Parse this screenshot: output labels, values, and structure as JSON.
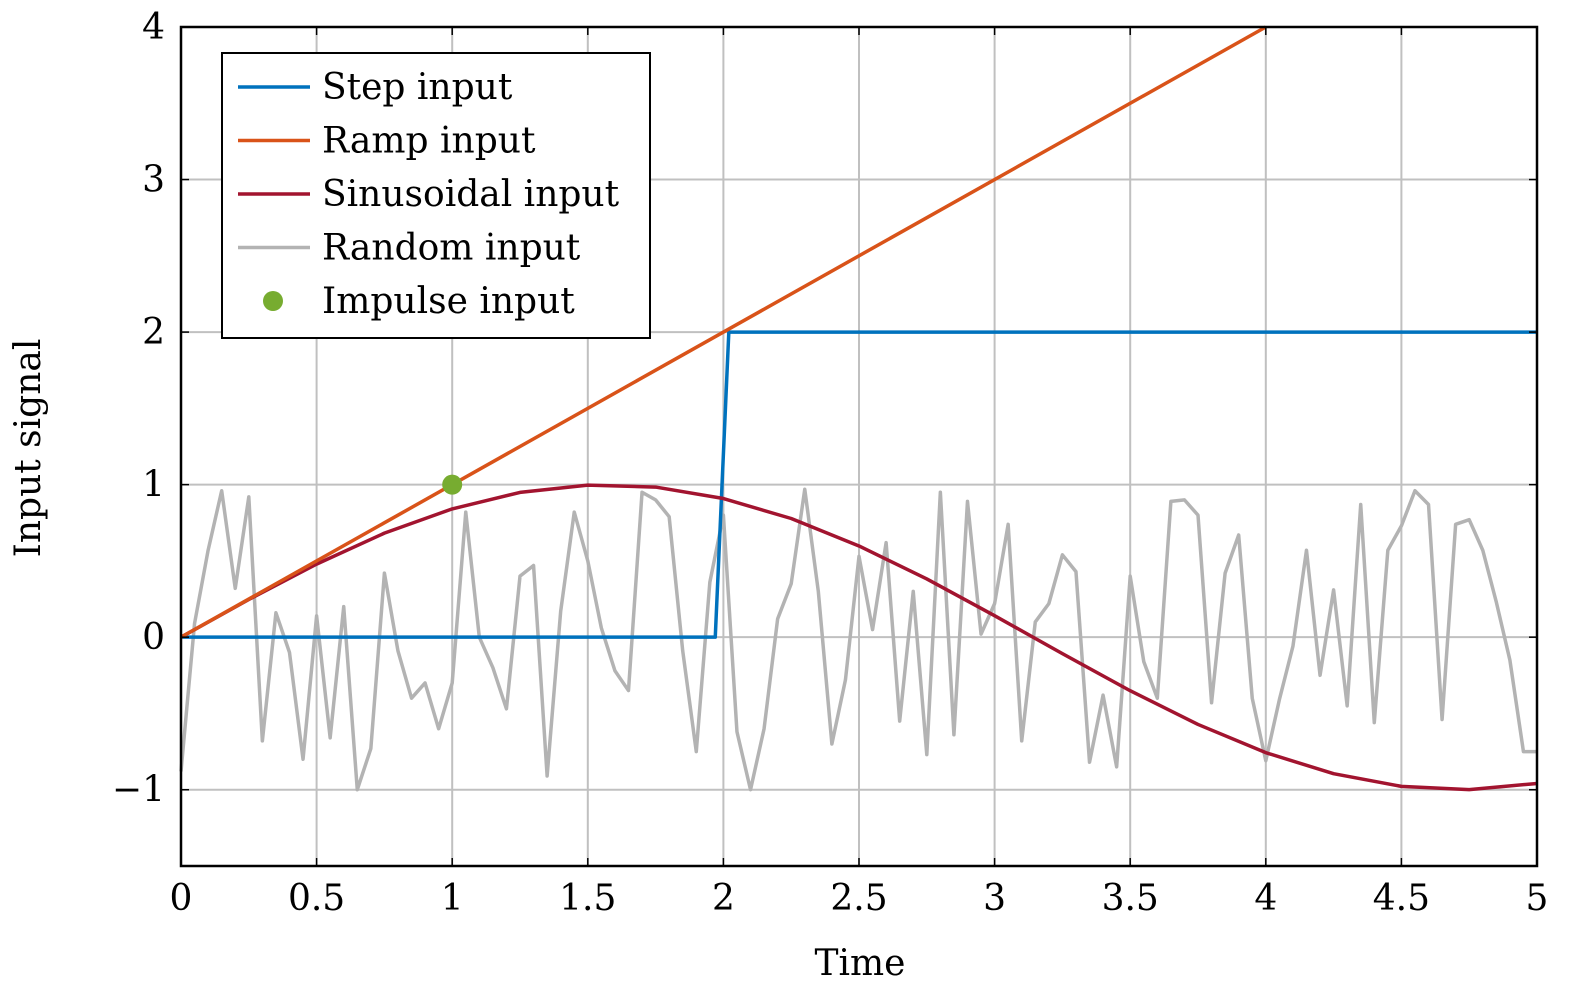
{
  "chart_data": {
    "type": "line",
    "xlabel": "Time",
    "ylabel": "Input signal",
    "xlim": [
      0,
      5
    ],
    "ylim": [
      -1.5,
      4
    ],
    "xticks": [
      0,
      0.5,
      1,
      1.5,
      2,
      2.5,
      3,
      3.5,
      4,
      4.5,
      5
    ],
    "xtick_labels": [
      "0",
      "0.5",
      "1",
      "1.5",
      "2",
      "2.5",
      "3",
      "3.5",
      "4",
      "4.5",
      "5"
    ],
    "yticks": [
      -1,
      0,
      1,
      2,
      3,
      4
    ],
    "ytick_labels": [
      "−1",
      "0",
      "1",
      "2",
      "3",
      "4"
    ],
    "grid": true,
    "legend_position": "top-left",
    "series": [
      {
        "name": "Step input",
        "color": "#0072BD",
        "kind": "line",
        "x": [
          0,
          1.97,
          2.02,
          5
        ],
        "y": [
          0,
          0,
          2,
          2
        ]
      },
      {
        "name": "Ramp input",
        "color": "#D95319",
        "kind": "line",
        "x": [
          0,
          4
        ],
        "y": [
          0,
          4
        ]
      },
      {
        "name": "Sinusoidal input",
        "color": "#A2142F",
        "kind": "line",
        "x": [
          0,
          0.25,
          0.5,
          0.75,
          1,
          1.25,
          1.5,
          1.75,
          2,
          2.25,
          2.5,
          2.75,
          3,
          3.25,
          3.5,
          3.75,
          4,
          4.25,
          4.5,
          4.75,
          5
        ],
        "y": [
          0,
          0.247,
          0.479,
          0.682,
          0.841,
          0.949,
          0.997,
          0.984,
          0.909,
          0.778,
          0.598,
          0.382,
          0.141,
          -0.108,
          -0.351,
          -0.572,
          -0.757,
          -0.895,
          -0.978,
          -0.999,
          -0.959
        ]
      },
      {
        "name": "Random input",
        "color": "#B3B3B3",
        "kind": "line",
        "x": [
          0,
          0.05,
          0.1,
          0.15,
          0.2,
          0.25,
          0.3,
          0.35,
          0.4,
          0.45,
          0.5,
          0.55,
          0.6,
          0.65,
          0.7,
          0.75,
          0.8,
          0.85,
          0.9,
          0.95,
          1,
          1.05,
          1.1,
          1.15,
          1.2,
          1.25,
          1.3,
          1.35,
          1.4,
          1.45,
          1.5,
          1.55,
          1.6,
          1.65,
          1.7,
          1.75,
          1.8,
          1.85,
          1.9,
          1.95,
          2,
          2.05,
          2.1,
          2.15,
          2.2,
          2.25,
          2.3,
          2.35,
          2.4,
          2.45,
          2.5,
          2.55,
          2.6,
          2.65,
          2.7,
          2.75,
          2.8,
          2.85,
          2.9,
          2.95,
          3,
          3.05,
          3.1,
          3.15,
          3.2,
          3.25,
          3.3,
          3.35,
          3.4,
          3.45,
          3.5,
          3.55,
          3.6,
          3.65,
          3.7,
          3.75,
          3.8,
          3.85,
          3.9,
          3.95,
          4,
          4.05,
          4.1,
          4.15,
          4.2,
          4.25,
          4.3,
          4.35,
          4.4,
          4.45,
          4.5,
          4.55,
          4.6,
          4.65,
          4.7,
          4.75,
          4.8,
          4.85,
          4.9,
          4.95,
          5
        ],
        "y": [
          -0.88,
          0.09,
          0.57,
          0.96,
          0.32,
          0.92,
          -0.68,
          0.16,
          -0.1,
          -0.8,
          0.14,
          -0.66,
          0.2,
          -1,
          -0.73,
          0.42,
          -0.09,
          -0.4,
          -0.3,
          -0.6,
          -0.3,
          0.82,
          0,
          -0.2,
          -0.47,
          0.4,
          0.47,
          -0.91,
          0.17,
          0.82,
          0.5,
          0.06,
          -0.22,
          -0.35,
          0.95,
          0.9,
          0.79,
          -0.09,
          -0.75,
          0.36,
          0.8,
          -0.62,
          -1,
          -0.6,
          0.12,
          0.35,
          0.97,
          0.3,
          -0.7,
          -0.28,
          0.53,
          0.05,
          0.62,
          -0.55,
          0.3,
          -0.77,
          0.95,
          -0.64,
          0.89,
          0.02,
          0.22,
          0.74,
          -0.68,
          0.1,
          0.22,
          0.54,
          0.43,
          -0.82,
          -0.38,
          -0.85,
          0.4,
          -0.16,
          -0.4,
          0.89,
          0.9,
          0.8,
          -0.43,
          0.42,
          0.67,
          -0.4,
          -0.81,
          -0.41,
          -0.06,
          0.57,
          -0.25,
          0.31,
          -0.45,
          0.87,
          -0.56,
          0.57,
          0.73,
          0.96,
          0.87,
          -0.54,
          0.74,
          0.77,
          0.57,
          0.23,
          -0.15,
          -0.75,
          -0.75
        ]
      },
      {
        "name": "Impulse input",
        "color": "#77AC30",
        "kind": "marker",
        "x": [
          1
        ],
        "y": [
          1
        ]
      }
    ]
  }
}
